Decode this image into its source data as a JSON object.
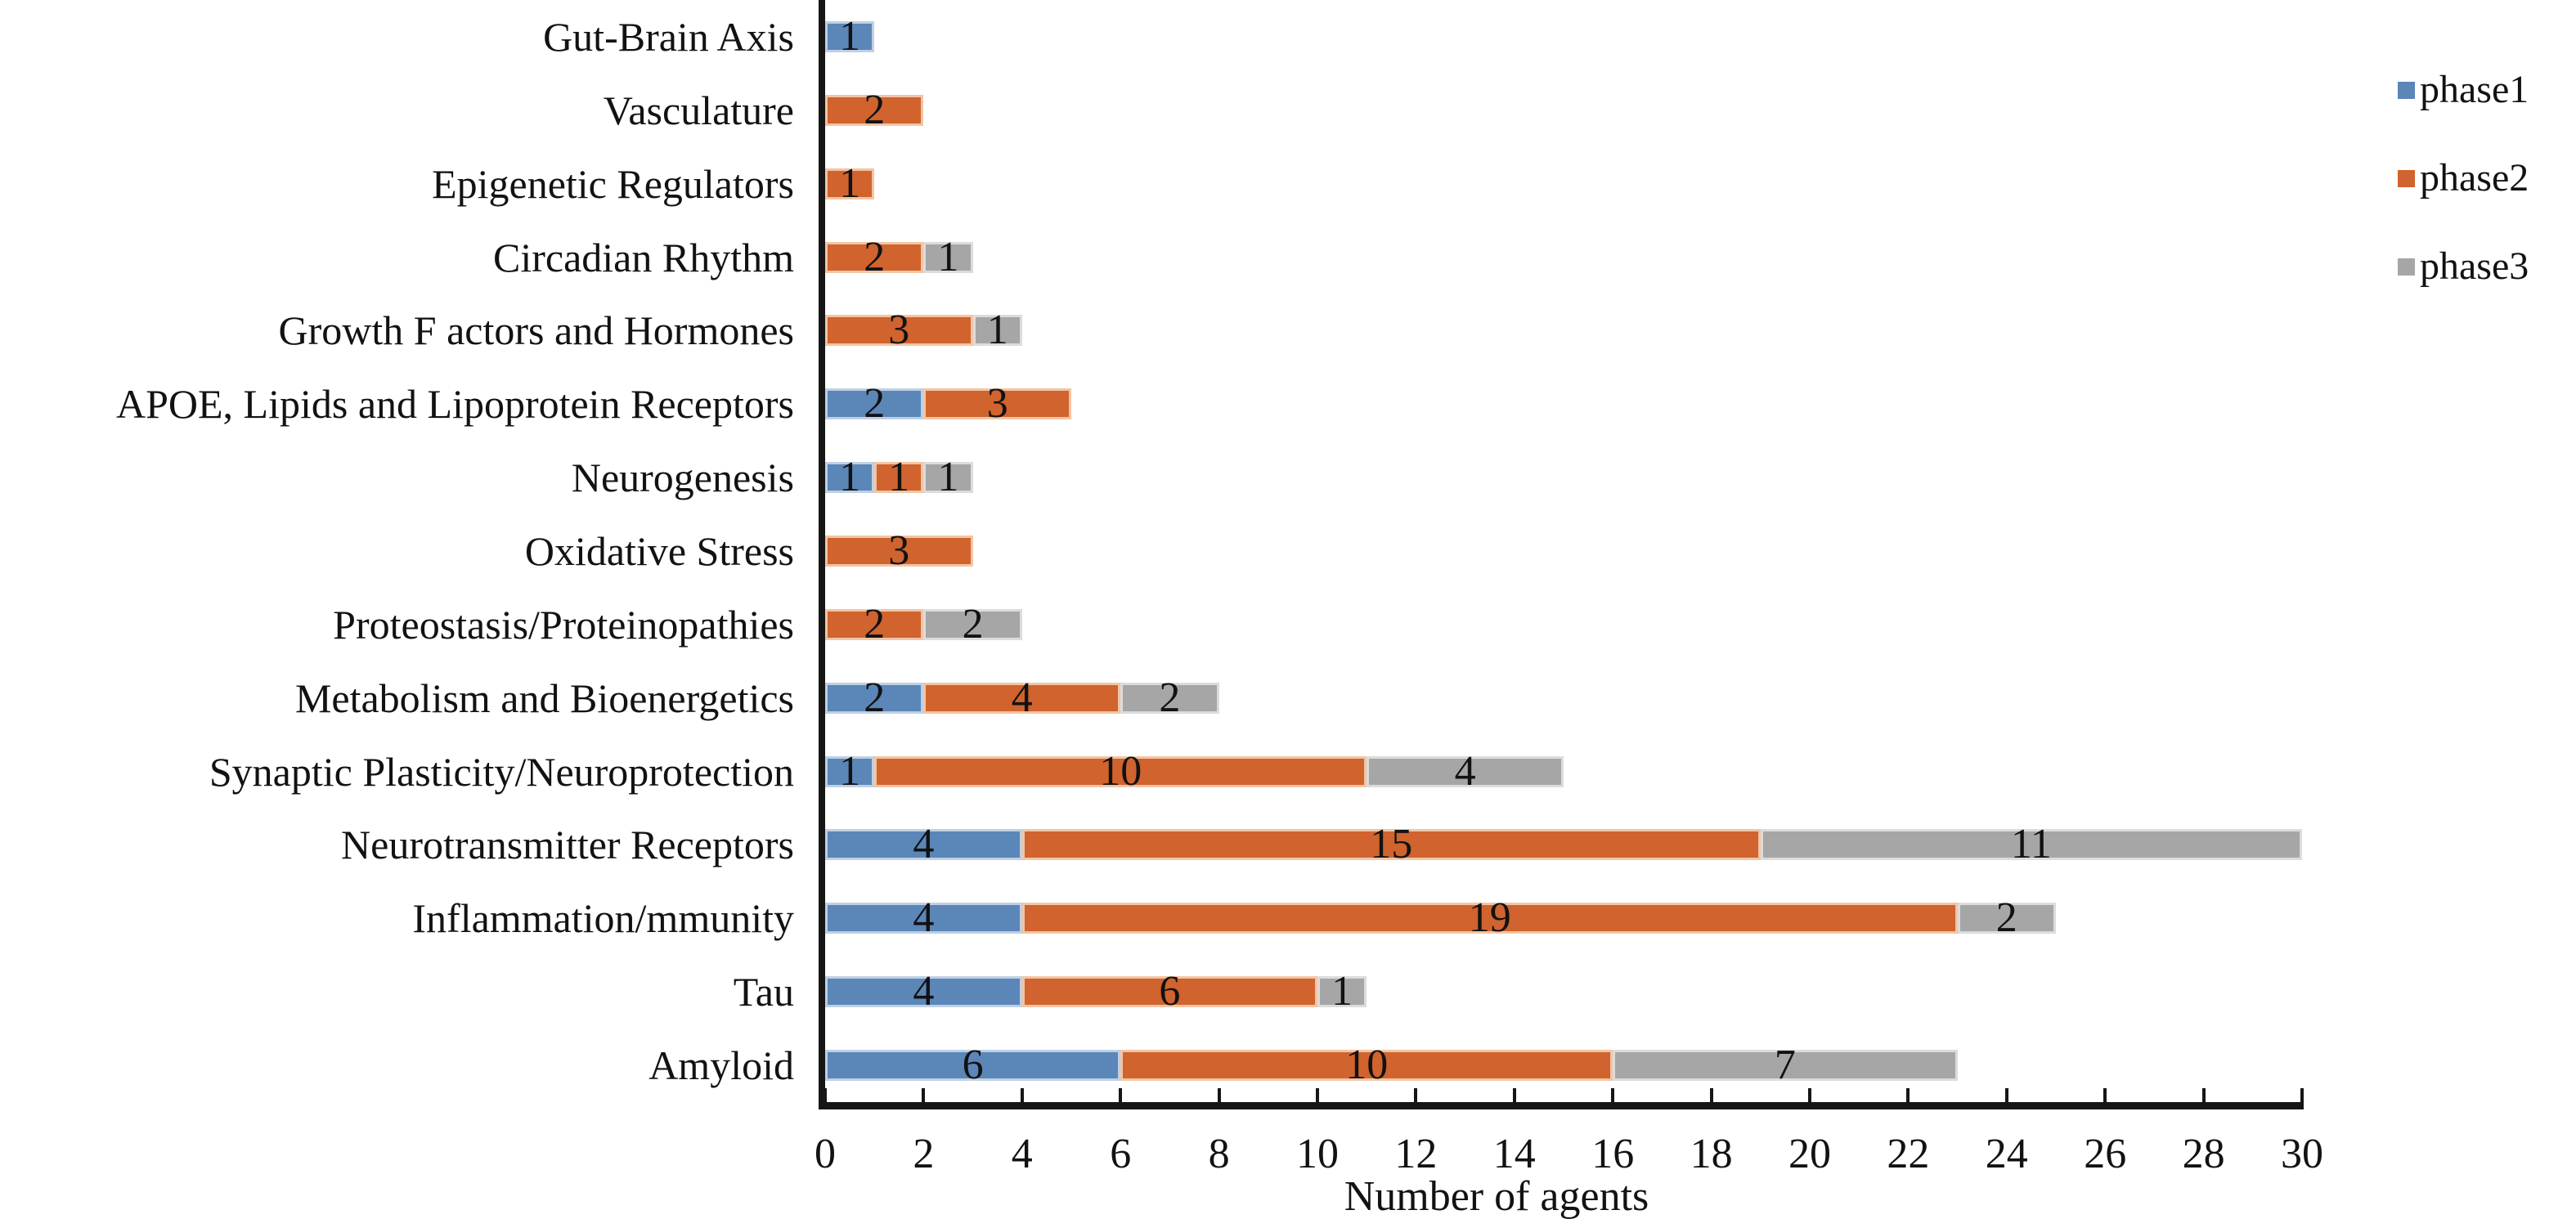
{
  "chart_data": {
    "type": "bar",
    "orientation": "horizontal",
    "stacked": true,
    "title": "",
    "xlabel": "Number of agents",
    "ylabel": "",
    "xlim": [
      0,
      30
    ],
    "xtick_step": 2,
    "xtick_labels": [
      "0",
      "2",
      "4",
      "6",
      "8",
      "10",
      "12",
      "14",
      "16",
      "18",
      "20",
      "22",
      "24",
      "26",
      "28",
      "30"
    ],
    "grid": false,
    "data_labels_shown": true,
    "legend_position": "top-right",
    "categories": [
      "Gut-Brain Axis",
      "Vasculature",
      "Epigenetic Regulators",
      "Circadian Rhythm",
      "Growth F actors and Hormones",
      "APOE, Lipids and Lipoprotein Receptors",
      "Neurogenesis",
      "Oxidative Stress",
      "Proteostasis/Proteinopathies",
      "Metabolism and Bioenergetics",
      "Synaptic Plasticity/Neuroprotection",
      "Neurotransmitter Receptors",
      "Inflammation/mmunity",
      "Tau",
      "Amyloid"
    ],
    "series": [
      {
        "name": "phase1",
        "color": "#5B86B8",
        "edge_color": "#BFD0E4",
        "values": [
          1,
          0,
          0,
          0,
          0,
          2,
          1,
          0,
          0,
          2,
          1,
          4,
          4,
          4,
          6
        ]
      },
      {
        "name": "phase2",
        "color": "#D0632E",
        "edge_color": "#F2C5A4",
        "values": [
          0,
          2,
          1,
          2,
          3,
          3,
          1,
          3,
          2,
          4,
          10,
          15,
          19,
          6,
          10
        ]
      },
      {
        "name": "phase3",
        "color": "#A6A6A6",
        "edge_color": "#DCDCDC",
        "values": [
          0,
          0,
          0,
          1,
          1,
          0,
          1,
          0,
          2,
          2,
          4,
          11,
          2,
          1,
          7
        ]
      }
    ],
    "axis_color": "#161616",
    "text_color": "#121212"
  }
}
